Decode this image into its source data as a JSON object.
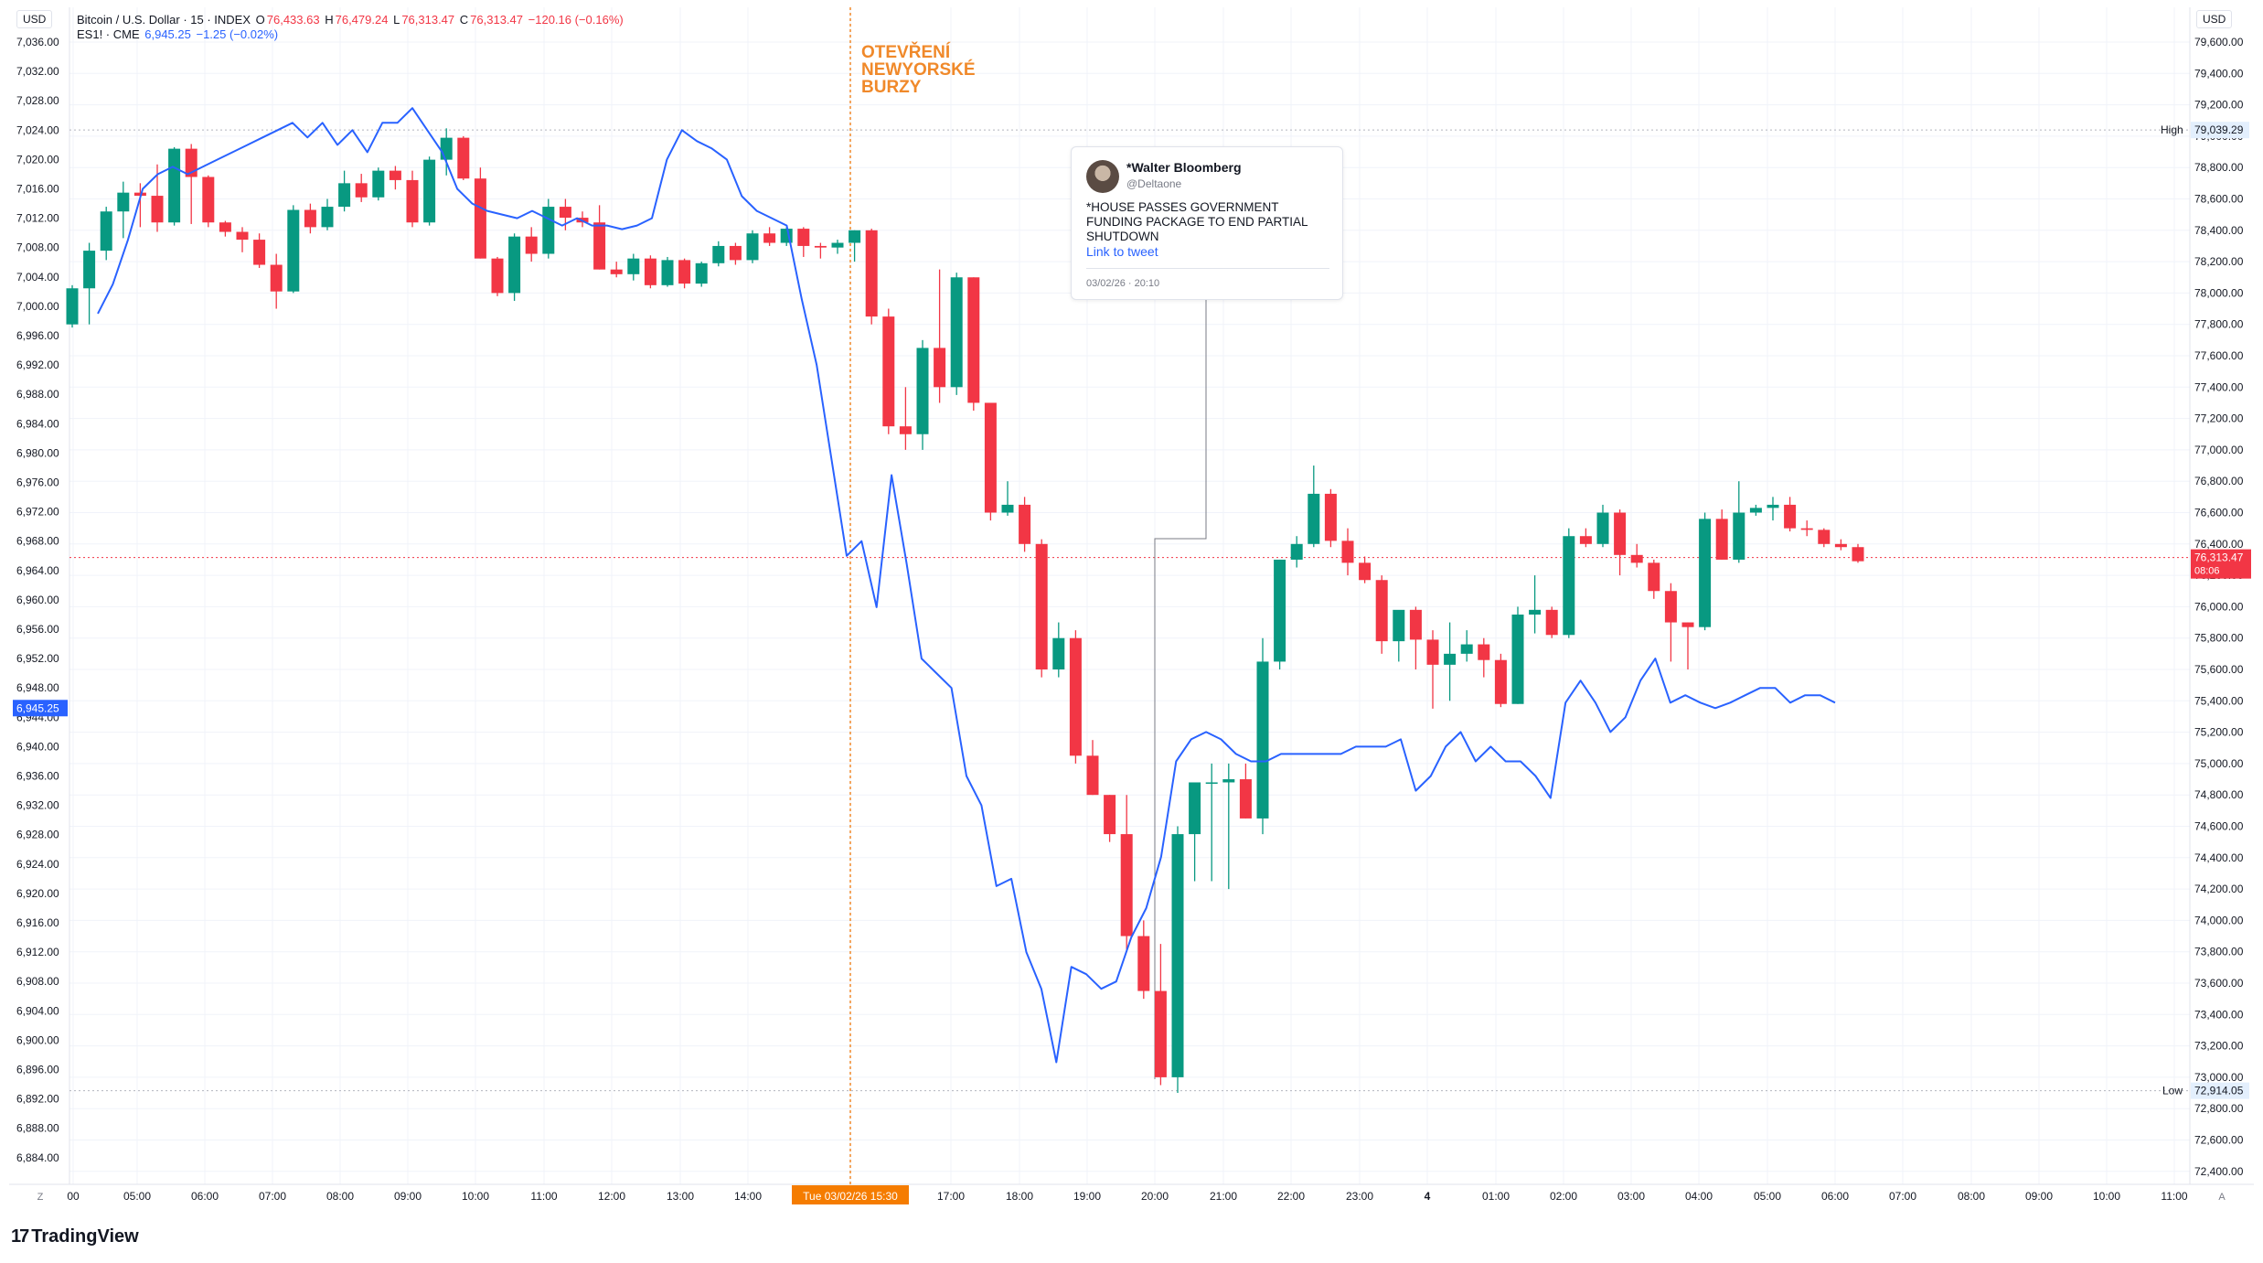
{
  "header": {
    "line1": {
      "symbol": "Bitcoin / U.S. Dollar · 15 · INDEX",
      "o_label": "O",
      "o": "76,433.63",
      "h_label": "H",
      "h": "76,479.24",
      "l_label": "L",
      "l": "76,313.47",
      "c_label": "C",
      "c": "76,313.47",
      "change": "−120.16 (−0.16%)"
    },
    "line2": {
      "symbol": "ES1! · CME",
      "value": "6,945.25",
      "change": "−1.25 (−0.02%)"
    }
  },
  "currency_left": "USD",
  "currency_right": "USD",
  "annotation": {
    "lines": [
      "OTEVŘENÍ",
      "NEWYORSKÉ",
      "BURZY"
    ]
  },
  "tweet": {
    "name": "*Walter Bloomberg",
    "handle": "@Deltaone",
    "text": "*HOUSE PASSES GOVERNMENT FUNDING PACKAGE TO END PARTIAL SHUTDOWN",
    "link": "Link to tweet",
    "date": "03/02/26 · 20:10"
  },
  "brand": {
    "logo": "17",
    "name": "TradingView"
  },
  "colors": {
    "up": "#089981",
    "down": "#f23645",
    "es_line": "#2962ff",
    "annotation": "#f0892a",
    "blue_label": "#2962ff"
  },
  "chart_data": {
    "type": "candlestick",
    "x_unit": "time (15-minute bars)",
    "time_labels": [
      "00",
      "05:00",
      "06:00",
      "07:00",
      "08:00",
      "09:00",
      "10:00",
      "11:00",
      "12:00",
      "13:00",
      "14:00",
      "Tue 03/02/26  15:30",
      "17:00",
      "18:00",
      "19:00",
      "20:00",
      "21:00",
      "22:00",
      "23:00",
      "4",
      "01:00",
      "02:00",
      "03:00",
      "04:00",
      "05:00",
      "06:00",
      "07:00",
      "08:00",
      "09:00",
      "10:00",
      "11:00"
    ],
    "time_axis_left_label": "Z",
    "time_axis_right_label": "A",
    "right_axis": {
      "series": "Bitcoin / U.S. Dollar",
      "ylim": [
        72300,
        79800
      ],
      "ticks": [
        "79,600.00",
        "79,400.00",
        "79,200.00",
        "79,000.00",
        "78,800.00",
        "78,600.00",
        "78,400.00",
        "78,200.00",
        "78,000.00",
        "77,800.00",
        "77,600.00",
        "77,400.00",
        "77,200.00",
        "77,000.00",
        "76,800.00",
        "76,600.00",
        "76,400.00",
        "76,200.00",
        "76,000.00",
        "75,800.00",
        "75,600.00",
        "75,400.00",
        "75,200.00",
        "75,000.00",
        "74,800.00",
        "74,600.00",
        "74,400.00",
        "74,200.00",
        "74,000.00",
        "73,800.00",
        "73,600.00",
        "73,400.00",
        "73,200.00",
        "73,000.00",
        "72,800.00",
        "72,600.00",
        "72,400.00"
      ],
      "high": {
        "label": "High",
        "value": "79,039.29"
      },
      "low": {
        "label": "Low",
        "value": "72,914.05"
      },
      "last": {
        "value": "76,313.47",
        "countdown": "08:06"
      }
    },
    "left_axis": {
      "series": "ES1! · CME",
      "ylim": [
        6882,
        7038
      ],
      "ticks": [
        "7,036.00",
        "7,032.00",
        "7,028.00",
        "7,024.00",
        "7,020.00",
        "7,016.00",
        "7,012.00",
        "7,008.00",
        "7,004.00",
        "7,000.00",
        "6,996.00",
        "6,992.00",
        "6,988.00",
        "6,984.00",
        "6,980.00",
        "6,976.00",
        "6,972.00",
        "6,968.00",
        "6,964.00",
        "6,960.00",
        "6,956.00",
        "6,952.00",
        "6,948.00",
        "6,944.00",
        "6,940.00",
        "6,936.00",
        "6,932.00",
        "6,928.00",
        "6,924.00",
        "6,920.00",
        "6,916.00",
        "6,912.00",
        "6,908.00",
        "6,904.00",
        "6,900.00",
        "6,896.00",
        "6,892.00",
        "6,888.00",
        "6,884.00"
      ],
      "last": {
        "value": "6,945.25"
      }
    },
    "btc_candles": [
      {
        "o": 77800,
        "h": 78050,
        "l": 77780,
        "c": 78030
      },
      {
        "o": 78030,
        "h": 78320,
        "l": 77800,
        "c": 78270
      },
      {
        "o": 78270,
        "h": 78550,
        "l": 78210,
        "c": 78520
      },
      {
        "o": 78520,
        "h": 78710,
        "l": 78350,
        "c": 78640
      },
      {
        "o": 78640,
        "h": 78700,
        "l": 78420,
        "c": 78620
      },
      {
        "o": 78620,
        "h": 78820,
        "l": 78390,
        "c": 78450
      },
      {
        "o": 78450,
        "h": 78930,
        "l": 78430,
        "c": 78920
      },
      {
        "o": 78920,
        "h": 78950,
        "l": 78440,
        "c": 78740
      },
      {
        "o": 78740,
        "h": 78750,
        "l": 78420,
        "c": 78450
      },
      {
        "o": 78450,
        "h": 78460,
        "l": 78360,
        "c": 78390
      },
      {
        "o": 78390,
        "h": 78420,
        "l": 78260,
        "c": 78340
      },
      {
        "o": 78340,
        "h": 78380,
        "l": 78160,
        "c": 78180
      },
      {
        "o": 78180,
        "h": 78250,
        "l": 77900,
        "c": 78010
      },
      {
        "o": 78010,
        "h": 78560,
        "l": 78000,
        "c": 78530
      },
      {
        "o": 78530,
        "h": 78570,
        "l": 78380,
        "c": 78420
      },
      {
        "o": 78420,
        "h": 78600,
        "l": 78400,
        "c": 78550
      },
      {
        "o": 78550,
        "h": 78780,
        "l": 78520,
        "c": 78700
      },
      {
        "o": 78700,
        "h": 78760,
        "l": 78580,
        "c": 78610
      },
      {
        "o": 78610,
        "h": 78800,
        "l": 78590,
        "c": 78780
      },
      {
        "o": 78780,
        "h": 78810,
        "l": 78660,
        "c": 78720
      },
      {
        "o": 78720,
        "h": 78780,
        "l": 78420,
        "c": 78450
      },
      {
        "o": 78450,
        "h": 78870,
        "l": 78430,
        "c": 78850
      },
      {
        "o": 78850,
        "h": 79050,
        "l": 78750,
        "c": 78990
      },
      {
        "o": 78990,
        "h": 79000,
        "l": 78720,
        "c": 78730
      },
      {
        "o": 78730,
        "h": 78800,
        "l": 78220,
        "c": 78220
      },
      {
        "o": 78220,
        "h": 78230,
        "l": 77980,
        "c": 78000
      },
      {
        "o": 78000,
        "h": 78380,
        "l": 77950,
        "c": 78360
      },
      {
        "o": 78360,
        "h": 78420,
        "l": 78200,
        "c": 78250
      },
      {
        "o": 78250,
        "h": 78600,
        "l": 78220,
        "c": 78550
      },
      {
        "o": 78550,
        "h": 78600,
        "l": 78400,
        "c": 78480
      },
      {
        "o": 78480,
        "h": 78520,
        "l": 78420,
        "c": 78450
      },
      {
        "o": 78450,
        "h": 78560,
        "l": 78150,
        "c": 78150
      },
      {
        "o": 78150,
        "h": 78200,
        "l": 78100,
        "c": 78120
      },
      {
        "o": 78120,
        "h": 78250,
        "l": 78080,
        "c": 78220
      },
      {
        "o": 78220,
        "h": 78240,
        "l": 78030,
        "c": 78050
      },
      {
        "o": 78050,
        "h": 78230,
        "l": 78040,
        "c": 78210
      },
      {
        "o": 78210,
        "h": 78220,
        "l": 78030,
        "c": 78060
      },
      {
        "o": 78060,
        "h": 78200,
        "l": 78040,
        "c": 78190
      },
      {
        "o": 78190,
        "h": 78330,
        "l": 78170,
        "c": 78300
      },
      {
        "o": 78300,
        "h": 78320,
        "l": 78180,
        "c": 78210
      },
      {
        "o": 78210,
        "h": 78400,
        "l": 78190,
        "c": 78380
      },
      {
        "o": 78380,
        "h": 78420,
        "l": 78300,
        "c": 78320
      },
      {
        "o": 78320,
        "h": 78420,
        "l": 78300,
        "c": 78410
      },
      {
        "o": 78410,
        "h": 78420,
        "l": 78230,
        "c": 78300
      },
      {
        "o": 78300,
        "h": 78320,
        "l": 78220,
        "c": 78290
      },
      {
        "o": 78290,
        "h": 78340,
        "l": 78250,
        "c": 78320
      },
      {
        "o": 78320,
        "h": 78400,
        "l": 78200,
        "c": 78400
      },
      {
        "o": 78400,
        "h": 78410,
        "l": 77800,
        "c": 77850
      },
      {
        "o": 77850,
        "h": 77900,
        "l": 77100,
        "c": 77150
      },
      {
        "o": 77150,
        "h": 77400,
        "l": 77000,
        "c": 77100
      },
      {
        "o": 77100,
        "h": 77700,
        "l": 77000,
        "c": 77650
      },
      {
        "o": 77650,
        "h": 78150,
        "l": 77300,
        "c": 77400
      },
      {
        "o": 77400,
        "h": 78130,
        "l": 77350,
        "c": 78100
      },
      {
        "o": 78100,
        "h": 78100,
        "l": 77250,
        "c": 77300
      },
      {
        "o": 77300,
        "h": 77300,
        "l": 76550,
        "c": 76600
      },
      {
        "o": 76600,
        "h": 76800,
        "l": 76580,
        "c": 76650
      },
      {
        "o": 76650,
        "h": 76700,
        "l": 76350,
        "c": 76400
      },
      {
        "o": 76400,
        "h": 76430,
        "l": 75550,
        "c": 75600
      },
      {
        "o": 75600,
        "h": 75900,
        "l": 75550,
        "c": 75800
      },
      {
        "o": 75800,
        "h": 75850,
        "l": 75000,
        "c": 75050
      },
      {
        "o": 75050,
        "h": 75150,
        "l": 74800,
        "c": 74800
      },
      {
        "o": 74800,
        "h": 74800,
        "l": 74500,
        "c": 74550
      },
      {
        "o": 74550,
        "h": 74800,
        "l": 73800,
        "c": 73900
      },
      {
        "o": 73900,
        "h": 74000,
        "l": 73500,
        "c": 73550
      },
      {
        "o": 73550,
        "h": 73850,
        "l": 72950,
        "c": 73000
      },
      {
        "o": 73000,
        "h": 74600,
        "l": 72900,
        "c": 74550
      },
      {
        "o": 74550,
        "h": 74850,
        "l": 74250,
        "c": 74880
      },
      {
        "o": 74880,
        "h": 75000,
        "l": 74250,
        "c": 74880
      },
      {
        "o": 74880,
        "h": 75000,
        "l": 74200,
        "c": 74900
      },
      {
        "o": 74900,
        "h": 75000,
        "l": 74650,
        "c": 74650
      },
      {
        "o": 74650,
        "h": 75800,
        "l": 74550,
        "c": 75650
      },
      {
        "o": 75650,
        "h": 76300,
        "l": 75600,
        "c": 76300
      },
      {
        "o": 76300,
        "h": 76450,
        "l": 76250,
        "c": 76400
      },
      {
        "o": 76400,
        "h": 76900,
        "l": 76380,
        "c": 76720
      },
      {
        "o": 76720,
        "h": 76750,
        "l": 76380,
        "c": 76420
      },
      {
        "o": 76420,
        "h": 76500,
        "l": 76200,
        "c": 76280
      },
      {
        "o": 76280,
        "h": 76320,
        "l": 76150,
        "c": 76170
      },
      {
        "o": 76170,
        "h": 76200,
        "l": 75700,
        "c": 75780
      },
      {
        "o": 75780,
        "h": 75950,
        "l": 75650,
        "c": 75980
      },
      {
        "o": 75980,
        "h": 76000,
        "l": 75600,
        "c": 75790
      },
      {
        "o": 75790,
        "h": 75850,
        "l": 75350,
        "c": 75630
      },
      {
        "o": 75630,
        "h": 75900,
        "l": 75400,
        "c": 75700
      },
      {
        "o": 75700,
        "h": 75850,
        "l": 75650,
        "c": 75760
      },
      {
        "o": 75760,
        "h": 75800,
        "l": 75550,
        "c": 75660
      },
      {
        "o": 75660,
        "h": 75700,
        "l": 75360,
        "c": 75380
      },
      {
        "o": 75380,
        "h": 76000,
        "l": 75380,
        "c": 75950
      },
      {
        "o": 75950,
        "h": 76200,
        "l": 75830,
        "c": 75980
      },
      {
        "o": 75980,
        "h": 76000,
        "l": 75800,
        "c": 75820
      },
      {
        "o": 75820,
        "h": 76500,
        "l": 75800,
        "c": 76450
      },
      {
        "o": 76450,
        "h": 76500,
        "l": 76380,
        "c": 76400
      },
      {
        "o": 76400,
        "h": 76650,
        "l": 76380,
        "c": 76600
      },
      {
        "o": 76600,
        "h": 76620,
        "l": 76200,
        "c": 76330
      },
      {
        "o": 76330,
        "h": 76400,
        "l": 76250,
        "c": 76280
      },
      {
        "o": 76280,
        "h": 76300,
        "l": 76050,
        "c": 76100
      },
      {
        "o": 76100,
        "h": 76150,
        "l": 75650,
        "c": 75900
      },
      {
        "o": 75900,
        "h": 75900,
        "l": 75600,
        "c": 75870
      },
      {
        "o": 75870,
        "h": 76600,
        "l": 75850,
        "c": 76560
      },
      {
        "o": 76560,
        "h": 76620,
        "l": 76300,
        "c": 76300
      },
      {
        "o": 76300,
        "h": 76800,
        "l": 76280,
        "c": 76600
      },
      {
        "o": 76600,
        "h": 76650,
        "l": 76580,
        "c": 76630
      },
      {
        "o": 76630,
        "h": 76700,
        "l": 76550,
        "c": 76650
      },
      {
        "o": 76650,
        "h": 76700,
        "l": 76480,
        "c": 76500
      },
      {
        "o": 76500,
        "h": 76550,
        "l": 76450,
        "c": 76490
      },
      {
        "o": 76490,
        "h": 76500,
        "l": 76380,
        "c": 76400
      },
      {
        "o": 76400,
        "h": 76430,
        "l": 76360,
        "c": 76380
      },
      {
        "o": 76380,
        "h": 76400,
        "l": 76280,
        "c": 76290
      }
    ],
    "es_line": [
      6999,
      7003,
      7009,
      7016,
      7018,
      7019,
      7018,
      7019,
      7020,
      7021,
      7022,
      7023,
      7024,
      7025,
      7023,
      7025,
      7022,
      7024,
      7021,
      7025,
      7025,
      7027,
      7024,
      7021,
      7016,
      7014,
      7013,
      7012.5,
      7012,
      7013,
      7012,
      7011,
      7012,
      7011,
      7011,
      7010.5,
      7011,
      7012,
      7020,
      7024,
      7022.5,
      7021.5,
      7020,
      7015,
      7013,
      7012,
      7011,
      7001,
      6992,
      6979,
      6966,
      6968,
      6959,
      6977,
      6965,
      6952,
      6950,
      6948,
      6936,
      6932,
      6921,
      6922,
      6912,
      6907,
      6897,
      6910,
      6909,
      6907,
      6908,
      6914,
      6918,
      6925,
      6938,
      6941,
      6942,
      6941,
      6939,
      6938,
      6938,
      6939,
      6939,
      6939,
      6939,
      6939,
      6940,
      6940,
      6940,
      6941,
      6934,
      6936,
      6940,
      6942,
      6938,
      6940,
      6938,
      6938,
      6936,
      6933,
      6946,
      6949,
      6946,
      6942,
      6944,
      6949,
      6952,
      6946,
      6947,
      6946,
      6945.25,
      6946,
      6947,
      6948,
      6948,
      6946,
      6947,
      6947,
      6946
    ]
  }
}
